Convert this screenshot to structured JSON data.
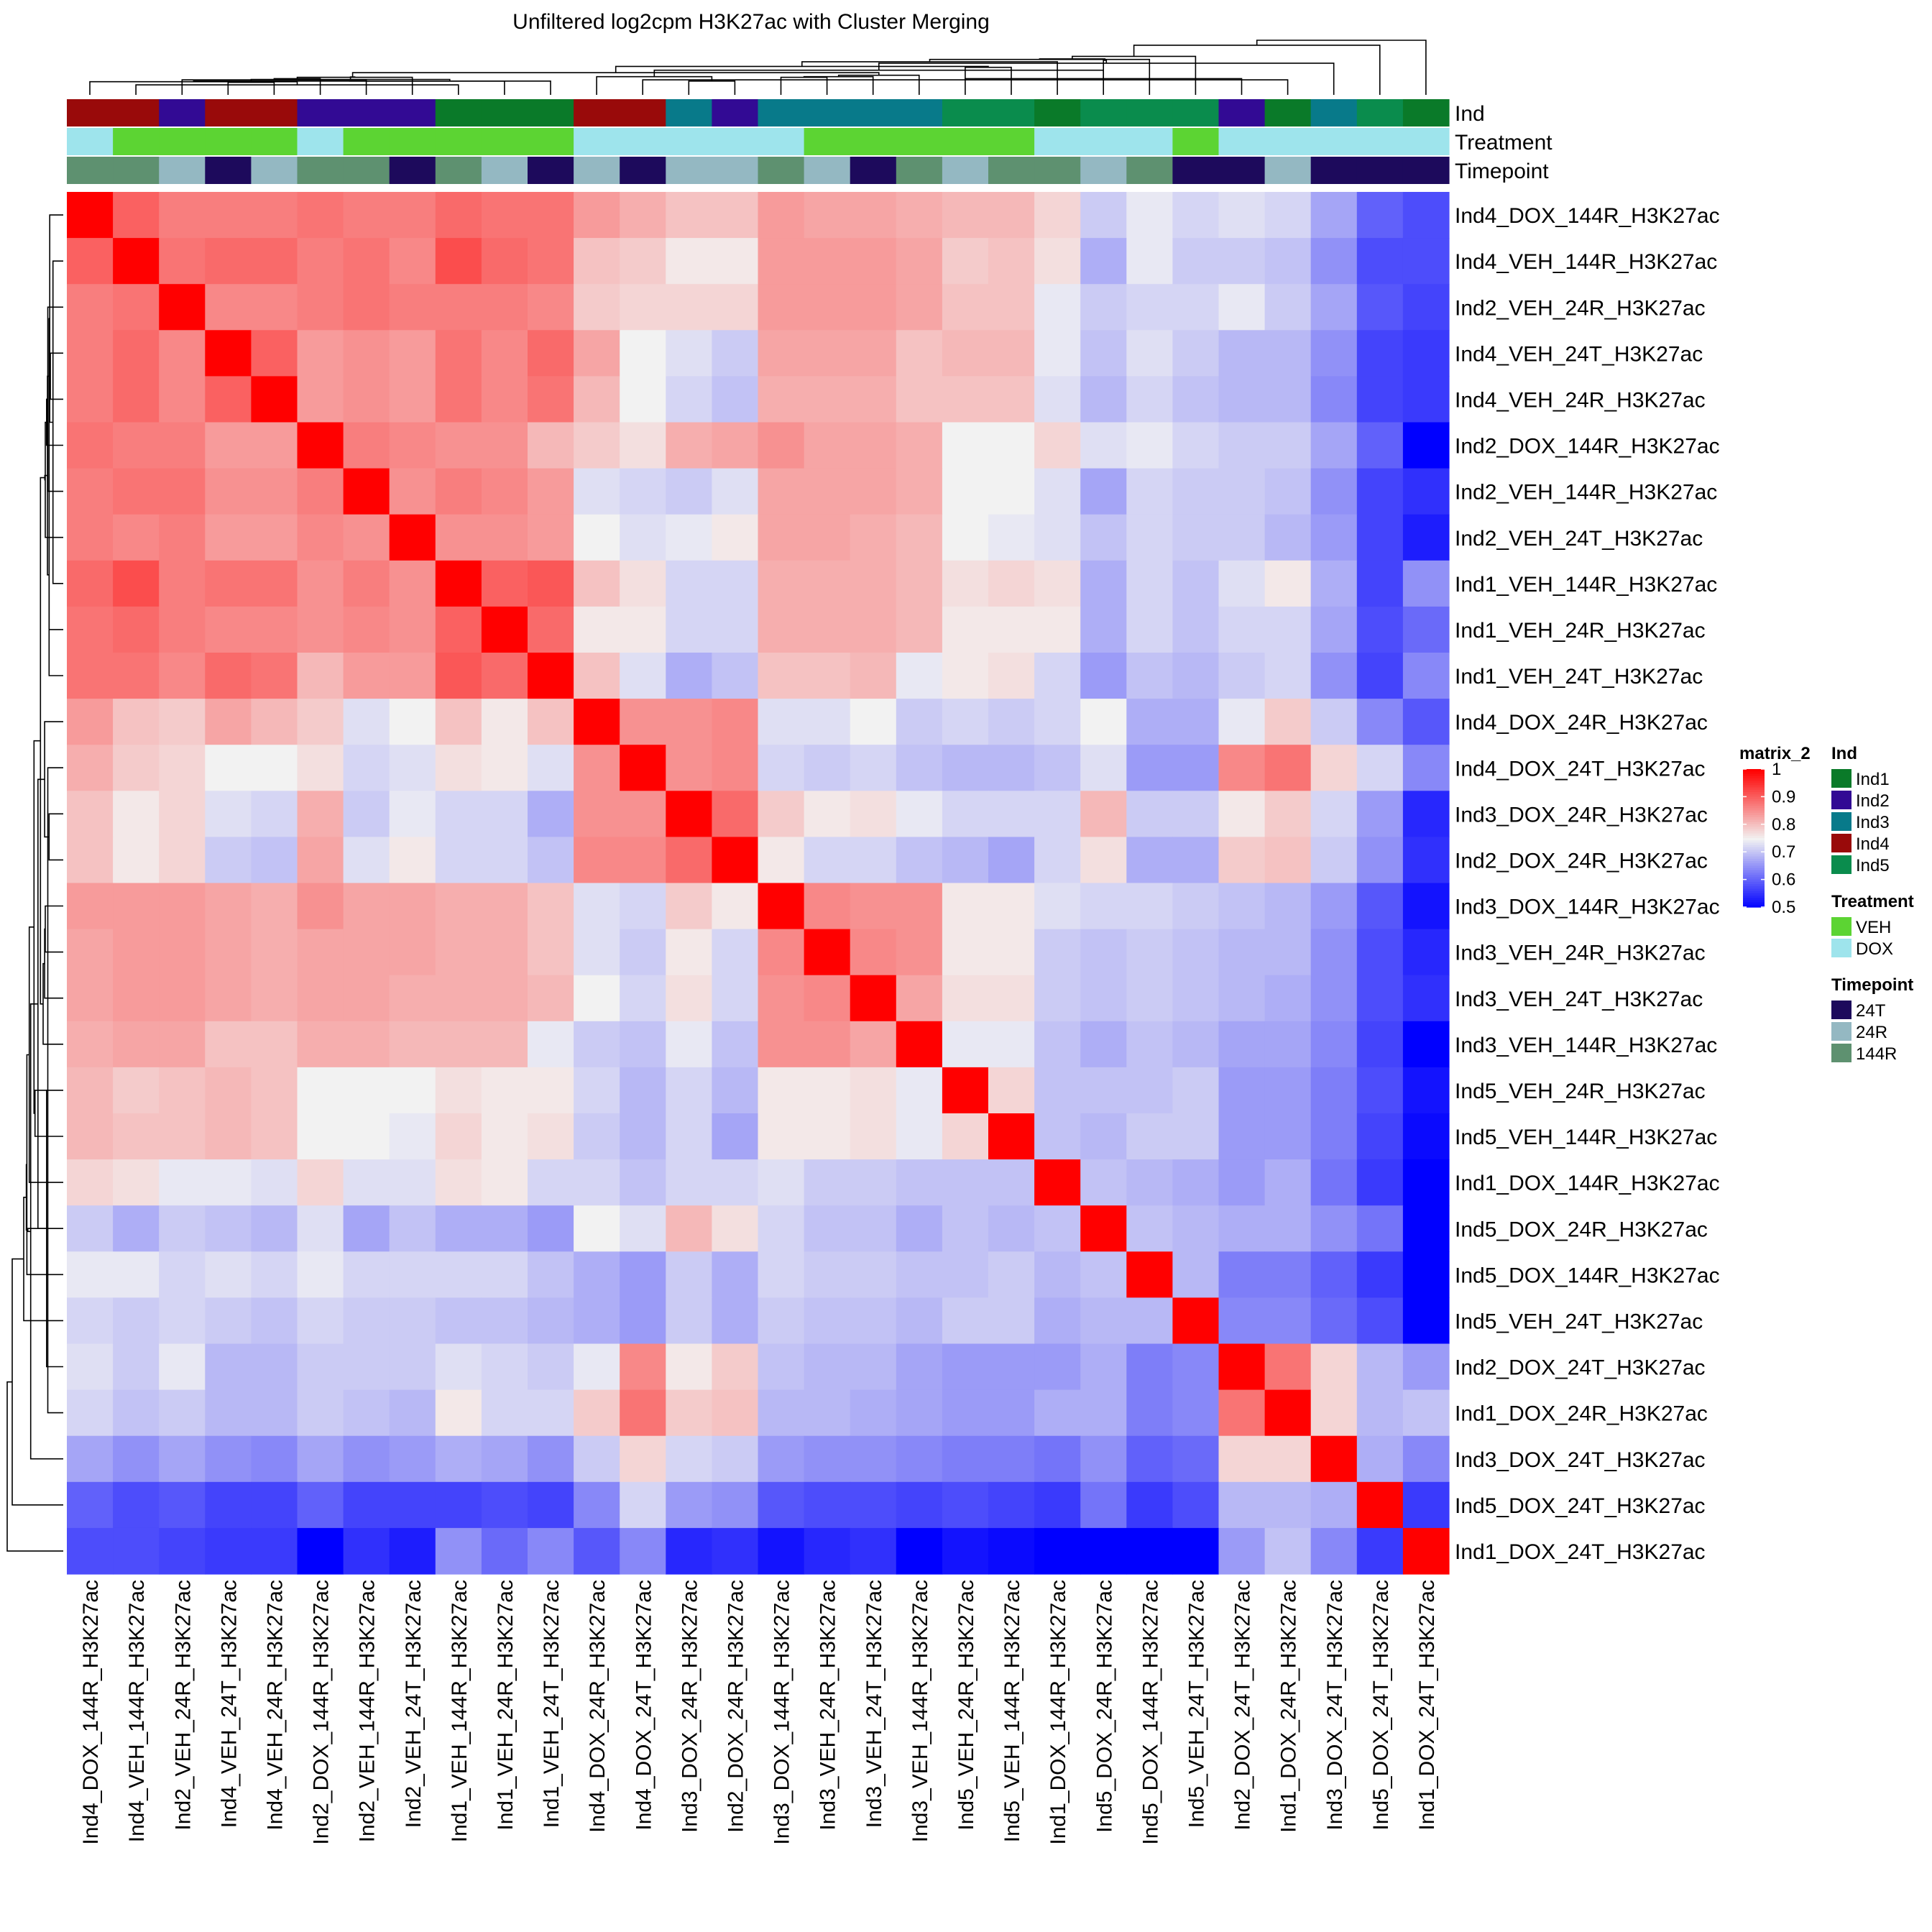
{
  "chart_data": {
    "type": "heatmap",
    "title": "Unfiltered log2cpm H3K27ac with Cluster Merging",
    "color_scale": {
      "name": "matrix_2",
      "min": 0.5,
      "mid": 0.75,
      "max": 1.0,
      "low_color": "#0000ff",
      "mid_color": "#f2f2f2",
      "high_color": "#ff0000",
      "ticks": [
        "1",
        "0.9",
        "0.8",
        "0.7",
        "0.6",
        "0.5"
      ]
    },
    "samples": [
      "Ind4_DOX_144R_H3K27ac",
      "Ind4_VEH_144R_H3K27ac",
      "Ind2_VEH_24R_H3K27ac",
      "Ind4_VEH_24T_H3K27ac",
      "Ind4_VEH_24R_H3K27ac",
      "Ind2_DOX_144R_H3K27ac",
      "Ind2_VEH_144R_H3K27ac",
      "Ind2_VEH_24T_H3K27ac",
      "Ind1_VEH_144R_H3K27ac",
      "Ind1_VEH_24R_H3K27ac",
      "Ind1_VEH_24T_H3K27ac",
      "Ind4_DOX_24R_H3K27ac",
      "Ind4_DOX_24T_H3K27ac",
      "Ind3_DOX_24R_H3K27ac",
      "Ind2_DOX_24R_H3K27ac",
      "Ind3_DOX_144R_H3K27ac",
      "Ind3_VEH_24R_H3K27ac",
      "Ind3_VEH_24T_H3K27ac",
      "Ind3_VEH_144R_H3K27ac",
      "Ind5_VEH_24R_H3K27ac",
      "Ind5_VEH_144R_H3K27ac",
      "Ind1_DOX_144R_H3K27ac",
      "Ind5_DOX_24R_H3K27ac",
      "Ind5_DOX_144R_H3K27ac",
      "Ind5_VEH_24T_H3K27ac",
      "Ind2_DOX_24T_H3K27ac",
      "Ind1_DOX_24R_H3K27ac",
      "Ind3_DOX_24T_H3K27ac",
      "Ind5_DOX_24T_H3K27ac",
      "Ind1_DOX_24T_H3K27ac"
    ],
    "annotations": {
      "Ind": [
        "Ind4",
        "Ind4",
        "Ind2",
        "Ind4",
        "Ind4",
        "Ind2",
        "Ind2",
        "Ind2",
        "Ind1",
        "Ind1",
        "Ind1",
        "Ind4",
        "Ind4",
        "Ind3",
        "Ind2",
        "Ind3",
        "Ind3",
        "Ind3",
        "Ind3",
        "Ind5",
        "Ind5",
        "Ind1",
        "Ind5",
        "Ind5",
        "Ind5",
        "Ind2",
        "Ind1",
        "Ind3",
        "Ind5",
        "Ind1"
      ],
      "Treatment": [
        "DOX",
        "VEH",
        "VEH",
        "VEH",
        "VEH",
        "DOX",
        "VEH",
        "VEH",
        "VEH",
        "VEH",
        "VEH",
        "DOX",
        "DOX",
        "DOX",
        "DOX",
        "DOX",
        "VEH",
        "VEH",
        "VEH",
        "VEH",
        "VEH",
        "DOX",
        "DOX",
        "DOX",
        "VEH",
        "DOX",
        "DOX",
        "DOX",
        "DOX",
        "DOX"
      ],
      "Timepoint": [
        "144R",
        "144R",
        "24R",
        "24T",
        "24R",
        "144R",
        "144R",
        "24T",
        "144R",
        "24R",
        "24T",
        "24R",
        "24T",
        "24R",
        "24R",
        "144R",
        "24R",
        "24T",
        "144R",
        "24R",
        "144R",
        "144R",
        "24R",
        "144R",
        "24T",
        "24T",
        "24R",
        "24T",
        "24T",
        "24T"
      ]
    },
    "annotation_row_labels": [
      "Ind",
      "Treatment",
      "Timepoint"
    ],
    "annotation_colors": {
      "Ind": {
        "Ind1": "#0a7a29",
        "Ind2": "#320a94",
        "Ind3": "#087a8a",
        "Ind4": "#990a0a",
        "Ind5": "#0a8c4d"
      },
      "Treatment": {
        "VEH": "#5cd433",
        "DOX": "#9ee4ec"
      },
      "Timepoint": {
        "24T": "#1d0a5c",
        "24R": "#94b8c2",
        "144R": "#5e9170"
      }
    },
    "legends": [
      {
        "title": "Ind",
        "items": [
          "Ind1",
          "Ind2",
          "Ind3",
          "Ind4",
          "Ind5"
        ]
      },
      {
        "title": "Treatment",
        "items": [
          "VEH",
          "DOX"
        ]
      },
      {
        "title": "Timepoint",
        "items": [
          "24T",
          "24R",
          "144R"
        ]
      }
    ],
    "matrix": [
      [
        1,
        0.9,
        0.87,
        0.87,
        0.87,
        0.88,
        0.87,
        0.87,
        0.89,
        0.88,
        0.88,
        0.84,
        0.82,
        0.8,
        0.8,
        0.84,
        0.83,
        0.83,
        0.82,
        0.81,
        0.81,
        0.78,
        0.71,
        0.74,
        0.72,
        0.73,
        0.72,
        0.67,
        0.6,
        0.58
      ],
      [
        0.9,
        1,
        0.88,
        0.89,
        0.89,
        0.87,
        0.88,
        0.86,
        0.92,
        0.89,
        0.88,
        0.8,
        0.79,
        0.76,
        0.76,
        0.84,
        0.84,
        0.84,
        0.83,
        0.79,
        0.8,
        0.77,
        0.68,
        0.74,
        0.71,
        0.71,
        0.7,
        0.65,
        0.58,
        0.58
      ],
      [
        0.87,
        0.88,
        1,
        0.86,
        0.86,
        0.87,
        0.88,
        0.87,
        0.87,
        0.87,
        0.86,
        0.79,
        0.78,
        0.78,
        0.78,
        0.84,
        0.84,
        0.84,
        0.83,
        0.8,
        0.8,
        0.74,
        0.71,
        0.72,
        0.72,
        0.74,
        0.71,
        0.67,
        0.59,
        0.57
      ],
      [
        0.87,
        0.89,
        0.86,
        1,
        0.9,
        0.84,
        0.85,
        0.84,
        0.88,
        0.86,
        0.89,
        0.83,
        0.75,
        0.73,
        0.71,
        0.83,
        0.83,
        0.83,
        0.8,
        0.81,
        0.81,
        0.74,
        0.7,
        0.73,
        0.71,
        0.69,
        0.69,
        0.65,
        0.57,
        0.56
      ],
      [
        0.87,
        0.89,
        0.86,
        0.9,
        1,
        0.84,
        0.85,
        0.84,
        0.88,
        0.86,
        0.88,
        0.81,
        0.75,
        0.72,
        0.7,
        0.82,
        0.82,
        0.82,
        0.8,
        0.8,
        0.8,
        0.73,
        0.69,
        0.72,
        0.7,
        0.69,
        0.69,
        0.64,
        0.57,
        0.56
      ],
      [
        0.88,
        0.87,
        0.87,
        0.84,
        0.84,
        1,
        0.87,
        0.86,
        0.85,
        0.85,
        0.81,
        0.79,
        0.77,
        0.82,
        0.83,
        0.85,
        0.83,
        0.83,
        0.82,
        0.75,
        0.75,
        0.78,
        0.73,
        0.74,
        0.72,
        0.71,
        0.71,
        0.67,
        0.6,
        0.5
      ],
      [
        0.87,
        0.88,
        0.88,
        0.85,
        0.85,
        0.87,
        1,
        0.85,
        0.87,
        0.86,
        0.84,
        0.73,
        0.72,
        0.71,
        0.73,
        0.83,
        0.83,
        0.83,
        0.82,
        0.75,
        0.75,
        0.73,
        0.67,
        0.72,
        0.71,
        0.71,
        0.7,
        0.65,
        0.57,
        0.55
      ],
      [
        0.87,
        0.86,
        0.87,
        0.84,
        0.84,
        0.86,
        0.85,
        1,
        0.85,
        0.85,
        0.84,
        0.75,
        0.73,
        0.74,
        0.76,
        0.83,
        0.83,
        0.82,
        0.81,
        0.75,
        0.74,
        0.73,
        0.7,
        0.72,
        0.71,
        0.71,
        0.69,
        0.66,
        0.57,
        0.53
      ],
      [
        0.89,
        0.92,
        0.87,
        0.88,
        0.88,
        0.85,
        0.87,
        0.85,
        1,
        0.9,
        0.91,
        0.8,
        0.77,
        0.72,
        0.72,
        0.82,
        0.82,
        0.82,
        0.81,
        0.77,
        0.78,
        0.77,
        0.68,
        0.72,
        0.7,
        0.73,
        0.76,
        0.68,
        0.57,
        0.65
      ],
      [
        0.88,
        0.89,
        0.87,
        0.86,
        0.86,
        0.85,
        0.86,
        0.85,
        0.9,
        1,
        0.89,
        0.76,
        0.76,
        0.72,
        0.72,
        0.82,
        0.82,
        0.82,
        0.81,
        0.76,
        0.76,
        0.76,
        0.68,
        0.72,
        0.7,
        0.72,
        0.72,
        0.67,
        0.58,
        0.61
      ],
      [
        0.88,
        0.88,
        0.86,
        0.89,
        0.88,
        0.81,
        0.84,
        0.84,
        0.91,
        0.89,
        1,
        0.8,
        0.73,
        0.68,
        0.7,
        0.8,
        0.8,
        0.81,
        0.74,
        0.76,
        0.77,
        0.72,
        0.66,
        0.7,
        0.69,
        0.71,
        0.72,
        0.65,
        0.57,
        0.64
      ],
      [
        0.84,
        0.8,
        0.79,
        0.83,
        0.81,
        0.79,
        0.73,
        0.75,
        0.8,
        0.76,
        0.8,
        1,
        0.85,
        0.85,
        0.86,
        0.73,
        0.73,
        0.75,
        0.71,
        0.72,
        0.71,
        0.72,
        0.75,
        0.68,
        0.68,
        0.74,
        0.79,
        0.71,
        0.64,
        0.59
      ],
      [
        0.82,
        0.79,
        0.78,
        0.75,
        0.75,
        0.77,
        0.72,
        0.73,
        0.77,
        0.76,
        0.73,
        0.85,
        1,
        0.85,
        0.86,
        0.72,
        0.71,
        0.72,
        0.7,
        0.69,
        0.69,
        0.7,
        0.73,
        0.66,
        0.66,
        0.86,
        0.88,
        0.78,
        0.72,
        0.64
      ],
      [
        0.8,
        0.76,
        0.78,
        0.73,
        0.72,
        0.82,
        0.71,
        0.74,
        0.72,
        0.72,
        0.68,
        0.85,
        0.85,
        1,
        0.89,
        0.79,
        0.76,
        0.77,
        0.74,
        0.72,
        0.72,
        0.72,
        0.81,
        0.71,
        0.71,
        0.76,
        0.79,
        0.72,
        0.66,
        0.54
      ],
      [
        0.8,
        0.76,
        0.78,
        0.71,
        0.7,
        0.83,
        0.73,
        0.76,
        0.72,
        0.72,
        0.7,
        0.86,
        0.86,
        0.89,
        1,
        0.76,
        0.72,
        0.72,
        0.7,
        0.69,
        0.67,
        0.72,
        0.77,
        0.68,
        0.68,
        0.79,
        0.8,
        0.71,
        0.65,
        0.55
      ],
      [
        0.84,
        0.84,
        0.84,
        0.83,
        0.82,
        0.85,
        0.83,
        0.83,
        0.82,
        0.82,
        0.8,
        0.73,
        0.72,
        0.79,
        0.76,
        1,
        0.86,
        0.85,
        0.85,
        0.76,
        0.76,
        0.73,
        0.72,
        0.72,
        0.71,
        0.7,
        0.69,
        0.66,
        0.59,
        0.52
      ],
      [
        0.83,
        0.84,
        0.84,
        0.83,
        0.82,
        0.83,
        0.83,
        0.83,
        0.82,
        0.82,
        0.8,
        0.73,
        0.71,
        0.76,
        0.72,
        0.86,
        1,
        0.86,
        0.85,
        0.76,
        0.76,
        0.71,
        0.7,
        0.71,
        0.7,
        0.69,
        0.69,
        0.65,
        0.58,
        0.54
      ],
      [
        0.83,
        0.84,
        0.84,
        0.83,
        0.82,
        0.83,
        0.83,
        0.82,
        0.82,
        0.82,
        0.81,
        0.75,
        0.72,
        0.77,
        0.72,
        0.85,
        0.86,
        1,
        0.83,
        0.77,
        0.77,
        0.71,
        0.7,
        0.71,
        0.7,
        0.69,
        0.68,
        0.65,
        0.58,
        0.55
      ],
      [
        0.82,
        0.83,
        0.83,
        0.8,
        0.8,
        0.82,
        0.82,
        0.81,
        0.81,
        0.81,
        0.74,
        0.71,
        0.7,
        0.74,
        0.7,
        0.85,
        0.85,
        0.83,
        1,
        0.74,
        0.74,
        0.7,
        0.68,
        0.7,
        0.69,
        0.67,
        0.67,
        0.64,
        0.57,
        0.5
      ],
      [
        0.81,
        0.79,
        0.8,
        0.81,
        0.8,
        0.75,
        0.75,
        0.75,
        0.77,
        0.76,
        0.76,
        0.72,
        0.69,
        0.72,
        0.69,
        0.76,
        0.76,
        0.77,
        0.74,
        1,
        0.78,
        0.7,
        0.7,
        0.7,
        0.71,
        0.66,
        0.66,
        0.63,
        0.58,
        0.52
      ],
      [
        0.81,
        0.8,
        0.8,
        0.81,
        0.8,
        0.75,
        0.75,
        0.74,
        0.78,
        0.76,
        0.77,
        0.71,
        0.69,
        0.72,
        0.67,
        0.76,
        0.76,
        0.77,
        0.74,
        0.78,
        1,
        0.7,
        0.69,
        0.71,
        0.71,
        0.66,
        0.66,
        0.63,
        0.57,
        0.51
      ],
      [
        0.78,
        0.77,
        0.74,
        0.74,
        0.73,
        0.78,
        0.73,
        0.73,
        0.77,
        0.76,
        0.72,
        0.72,
        0.7,
        0.72,
        0.72,
        0.73,
        0.71,
        0.71,
        0.7,
        0.7,
        0.7,
        1,
        0.7,
        0.69,
        0.68,
        0.66,
        0.68,
        0.62,
        0.56,
        0.5
      ],
      [
        0.71,
        0.68,
        0.71,
        0.7,
        0.69,
        0.73,
        0.67,
        0.7,
        0.68,
        0.68,
        0.66,
        0.75,
        0.73,
        0.81,
        0.77,
        0.72,
        0.7,
        0.7,
        0.68,
        0.7,
        0.69,
        0.7,
        1,
        0.7,
        0.69,
        0.68,
        0.68,
        0.65,
        0.62,
        0.5
      ],
      [
        0.74,
        0.74,
        0.72,
        0.73,
        0.72,
        0.74,
        0.72,
        0.72,
        0.72,
        0.72,
        0.7,
        0.68,
        0.66,
        0.71,
        0.68,
        0.72,
        0.71,
        0.71,
        0.7,
        0.7,
        0.71,
        0.69,
        0.7,
        1,
        0.69,
        0.63,
        0.63,
        0.6,
        0.56,
        0.5
      ],
      [
        0.72,
        0.71,
        0.72,
        0.71,
        0.7,
        0.72,
        0.71,
        0.71,
        0.7,
        0.7,
        0.69,
        0.68,
        0.66,
        0.71,
        0.68,
        0.71,
        0.7,
        0.7,
        0.69,
        0.71,
        0.71,
        0.68,
        0.69,
        0.69,
        1,
        0.64,
        0.64,
        0.61,
        0.58,
        0.5
      ],
      [
        0.73,
        0.71,
        0.74,
        0.69,
        0.69,
        0.71,
        0.71,
        0.71,
        0.73,
        0.72,
        0.71,
        0.74,
        0.86,
        0.76,
        0.79,
        0.7,
        0.69,
        0.69,
        0.67,
        0.66,
        0.66,
        0.66,
        0.68,
        0.63,
        0.64,
        1,
        0.88,
        0.78,
        0.69,
        0.66
      ],
      [
        0.72,
        0.7,
        0.71,
        0.69,
        0.69,
        0.71,
        0.7,
        0.69,
        0.76,
        0.72,
        0.72,
        0.79,
        0.88,
        0.79,
        0.8,
        0.69,
        0.69,
        0.68,
        0.67,
        0.66,
        0.66,
        0.68,
        0.68,
        0.63,
        0.64,
        0.88,
        1,
        0.78,
        0.69,
        0.7
      ],
      [
        0.67,
        0.65,
        0.67,
        0.65,
        0.64,
        0.67,
        0.65,
        0.66,
        0.68,
        0.67,
        0.65,
        0.71,
        0.78,
        0.72,
        0.71,
        0.66,
        0.65,
        0.65,
        0.64,
        0.63,
        0.63,
        0.62,
        0.65,
        0.6,
        0.61,
        0.78,
        0.78,
        1,
        0.68,
        0.64
      ],
      [
        0.6,
        0.58,
        0.59,
        0.57,
        0.57,
        0.6,
        0.57,
        0.57,
        0.57,
        0.58,
        0.57,
        0.64,
        0.72,
        0.66,
        0.65,
        0.59,
        0.58,
        0.58,
        0.57,
        0.58,
        0.57,
        0.56,
        0.62,
        0.56,
        0.58,
        0.69,
        0.69,
        0.68,
        1,
        0.56
      ],
      [
        0.58,
        0.58,
        0.57,
        0.56,
        0.56,
        0.5,
        0.55,
        0.53,
        0.65,
        0.61,
        0.64,
        0.59,
        0.64,
        0.54,
        0.55,
        0.52,
        0.54,
        0.55,
        0.5,
        0.52,
        0.51,
        0.5,
        0.5,
        0.5,
        0.5,
        0.66,
        0.7,
        0.64,
        0.56,
        1
      ]
    ]
  }
}
